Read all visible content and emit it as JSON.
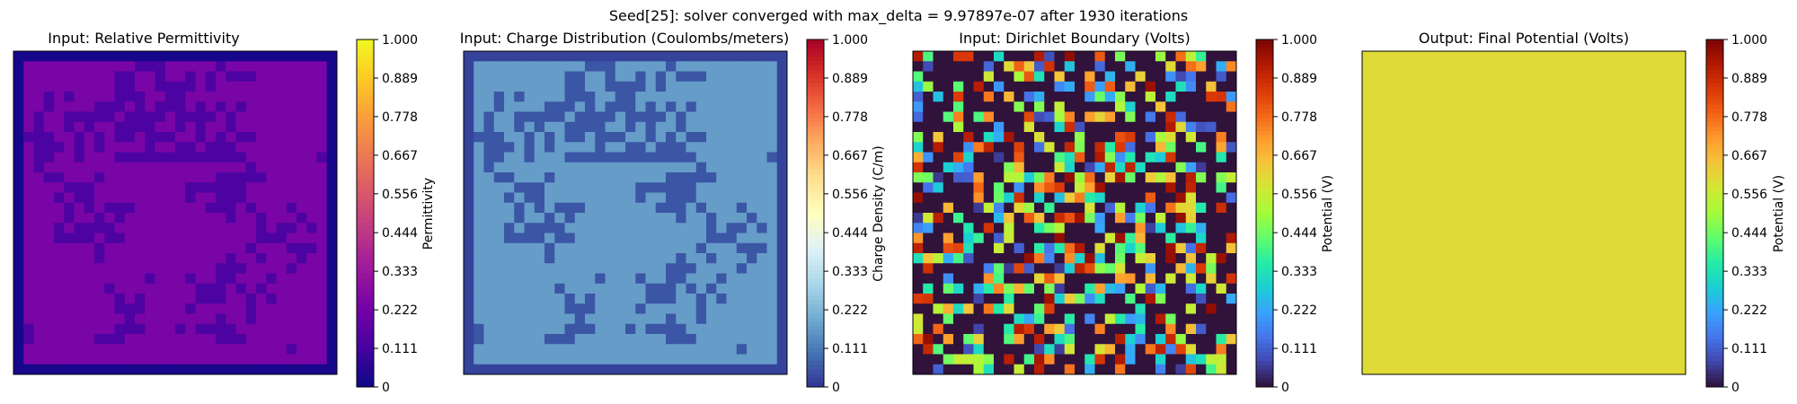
{
  "suptitle": "Seed[25]: solver converged with max_delta = 9.97897e-07 after 1930 iterations",
  "chart_data": [
    {
      "type": "heatmap",
      "title": "Input: Relative Permittivity",
      "colorbar_label": "Permittivity",
      "colormap": "plasma",
      "clim": [
        0,
        1
      ],
      "colorbar_ticks": [
        "0",
        "0.111",
        "0.222",
        "0.333",
        "0.444",
        "0.556",
        "0.667",
        "0.778",
        "0.889",
        "1.000"
      ],
      "grid_size": 32,
      "border_value": 0.02,
      "pattern": "blob_binary",
      "background_value": 0.24,
      "blob_value": 0.13
    },
    {
      "type": "heatmap",
      "title": "Input: Charge Distribution (Coulombs/meters)",
      "colorbar_label": "Charge Density (C/m)",
      "colormap": "RdYlBu_r",
      "clim": [
        0,
        1
      ],
      "colorbar_ticks": [
        "0",
        "0.111",
        "0.222",
        "0.333",
        "0.444",
        "0.556",
        "0.667",
        "0.778",
        "0.889",
        "1.000"
      ],
      "grid_size": 32,
      "border_value": 0.02,
      "pattern": "blob_binary",
      "background_value": 0.17,
      "blob_value": 0.05
    },
    {
      "type": "heatmap",
      "title": "Input: Dirichlet Boundary (Volts)",
      "colorbar_label": "Potential (V)",
      "colormap": "turbo",
      "clim": [
        0,
        1
      ],
      "colorbar_ticks": [
        "0",
        "0.111",
        "0.222",
        "0.333",
        "0.444",
        "0.556",
        "0.667",
        "0.778",
        "0.889",
        "1.000"
      ],
      "grid_size": 32,
      "pattern": "random_sparse",
      "empty_fraction": 0.5,
      "empty_value": 0.0
    },
    {
      "type": "heatmap",
      "title": "Output: Final Potential (Volts)",
      "colorbar_label": "Potential (V)",
      "colormap": "turbo",
      "clim": [
        0,
        1
      ],
      "colorbar_ticks": [
        "0",
        "0.111",
        "0.222",
        "0.333",
        "0.444",
        "0.556",
        "0.667",
        "0.778",
        "0.889",
        "1.000"
      ],
      "grid_size": 1,
      "pattern": "uniform",
      "uniform_value": 0.6
    }
  ]
}
